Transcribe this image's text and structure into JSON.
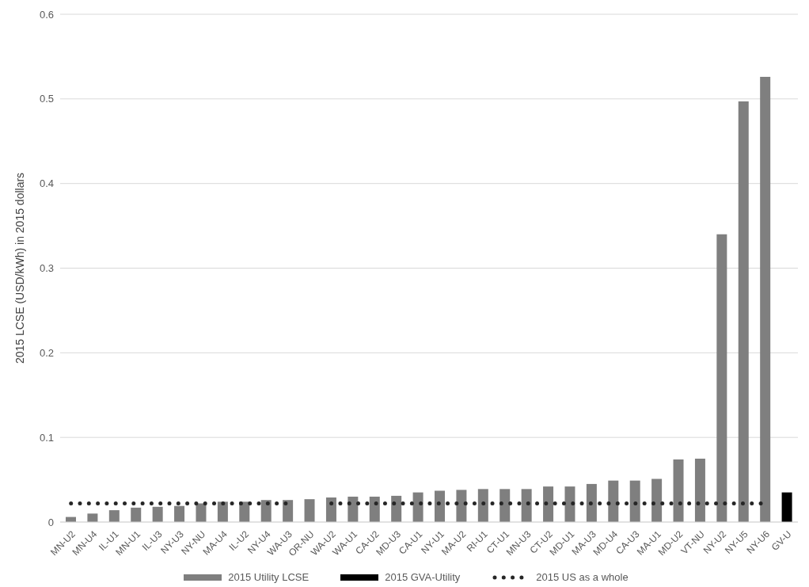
{
  "chart_data": {
    "type": "bar",
    "ylabel": "2015 LCSE (USD/kWh) in 2015 dollars",
    "categories": [
      "MN-U2",
      "MN-U4",
      "IL-U1",
      "MN-U1",
      "IL-U3",
      "NY-U3",
      "NY-NU",
      "MA-U4",
      "IL-U2",
      "NY-U4",
      "WA-U3",
      "OR-NU",
      "WA-U2",
      "WA-U1",
      "CA-U2",
      "MD-U3",
      "CA-U1",
      "NY-U1",
      "MA-U2",
      "RI-U1",
      "CT-U1",
      "MN-U3",
      "CT-U2",
      "MD-U1",
      "MA-U3",
      "MD-U4",
      "CA-U3",
      "MA-U1",
      "MD-U2",
      "VT-NU",
      "NY-U2",
      "NY-U5",
      "NY-U6",
      "GV-U"
    ],
    "series": [
      {
        "name": "2015 Utility LCSE",
        "color": "#7f7f7f",
        "values": [
          0.006,
          0.01,
          0.014,
          0.017,
          0.018,
          0.019,
          0.022,
          0.024,
          0.024,
          0.026,
          0.026,
          0.027,
          0.029,
          0.03,
          0.03,
          0.031,
          0.035,
          0.037,
          0.038,
          0.039,
          0.039,
          0.039,
          0.042,
          0.042,
          0.045,
          0.049,
          0.049,
          0.051,
          0.074,
          0.075,
          0.34,
          0.497,
          0.526,
          null
        ]
      },
      {
        "name": "2015 GVA-Utility",
        "color": "#000000",
        "values": [
          null,
          null,
          null,
          null,
          null,
          null,
          null,
          null,
          null,
          null,
          null,
          null,
          null,
          null,
          null,
          null,
          null,
          null,
          null,
          null,
          null,
          null,
          null,
          null,
          null,
          null,
          null,
          null,
          null,
          null,
          null,
          null,
          null,
          0.035
        ]
      },
      {
        "name": "2015 US as a whole",
        "type": "line",
        "color": "#262626",
        "line_style": "dotted",
        "marker": "none",
        "values": [
          0.022,
          0.022,
          0.022,
          0.022,
          0.022,
          0.022,
          0.022,
          0.022,
          0.022,
          0.022,
          0.022,
          null,
          0.022,
          0.022,
          0.022,
          0.022,
          0.022,
          0.022,
          0.022,
          0.022,
          0.022,
          0.022,
          0.022,
          0.022,
          0.022,
          0.022,
          0.022,
          0.022,
          0.022,
          0.022,
          0.022,
          0.022,
          0.022,
          null
        ]
      }
    ],
    "ylim": [
      0,
      0.6
    ],
    "yticks": [
      0,
      0.1,
      0.2,
      0.3,
      0.4,
      0.5,
      0.6
    ],
    "grid": "y",
    "legend": "bottom"
  }
}
